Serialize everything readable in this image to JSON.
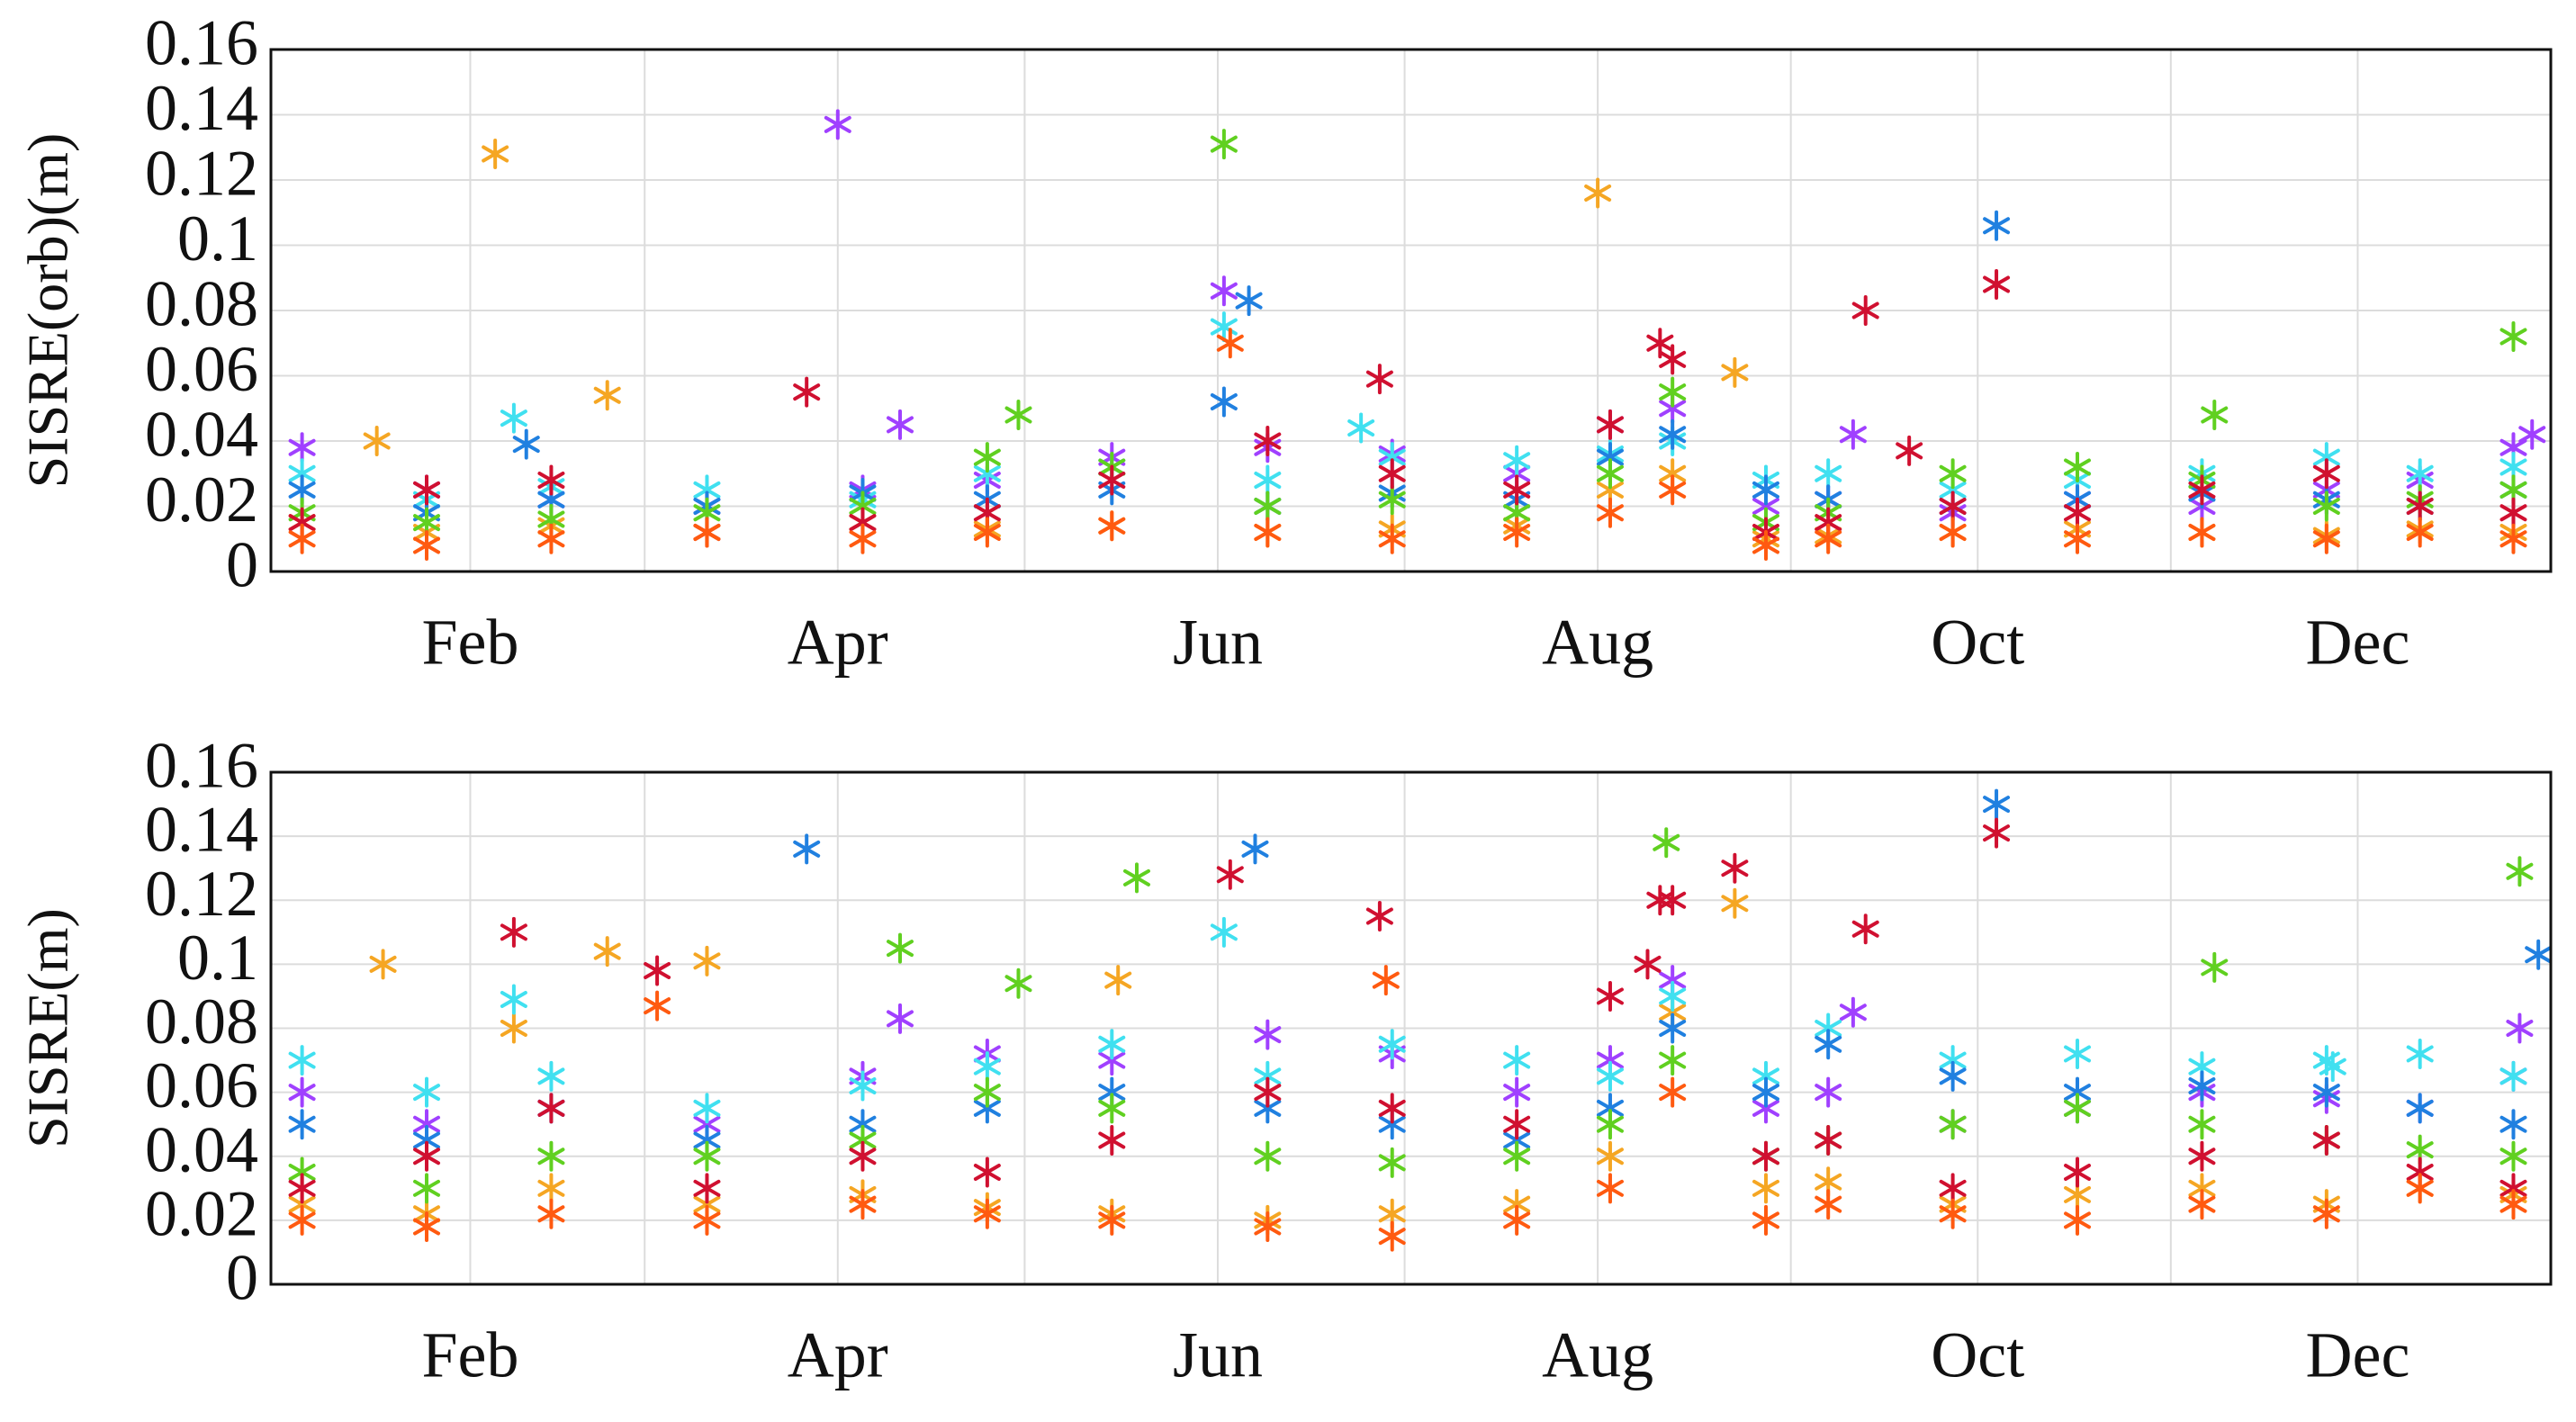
{
  "chart_data": [
    {
      "type": "scatter",
      "ylabel": "SISRE(orb)(m)",
      "xlim": [
        0,
        366
      ],
      "ylim": [
        0,
        0.16
      ],
      "yticks": [
        0,
        0.02,
        0.04,
        0.06,
        0.08,
        0.1,
        0.12,
        0.14,
        0.16
      ],
      "xticks": [
        {
          "value": 32,
          "label": "Feb"
        },
        {
          "value": 91,
          "label": "Apr"
        },
        {
          "value": 152,
          "label": "Jun"
        },
        {
          "value": 213,
          "label": "Aug"
        },
        {
          "value": 274,
          "label": "Oct"
        },
        {
          "value": 335,
          "label": "Dec"
        }
      ],
      "xticks_minor": [
        60,
        121,
        182,
        244,
        305
      ],
      "grid": true,
      "series": [
        {
          "color": "#f5a623",
          "x": [
            5,
            25,
            45,
            70,
            95,
            115,
            135,
            160,
            180,
            200,
            215,
            225,
            240,
            250,
            270,
            290,
            310,
            330,
            345,
            360,
            17,
            36,
            54,
            213,
            235
          ],
          "values": [
            0.015,
            0.012,
            0.014,
            0.012,
            0.015,
            0.013,
            0.014,
            0.012,
            0.013,
            0.014,
            0.025,
            0.03,
            0.01,
            0.011,
            0.012,
            0.013,
            0.012,
            0.011,
            0.013,
            0.012,
            0.04,
            0.128,
            0.054,
            0.116,
            0.061
          ]
        },
        {
          "color": "#a040ff",
          "x": [
            5,
            25,
            45,
            70,
            95,
            115,
            135,
            160,
            180,
            200,
            215,
            225,
            240,
            250,
            270,
            290,
            310,
            330,
            345,
            360,
            91,
            101,
            254,
            363,
            153
          ],
          "values": [
            0.038,
            0.025,
            0.022,
            0.02,
            0.025,
            0.028,
            0.035,
            0.038,
            0.036,
            0.03,
            0.045,
            0.05,
            0.02,
            0.022,
            0.018,
            0.022,
            0.02,
            0.025,
            0.028,
            0.038,
            0.137,
            0.045,
            0.042,
            0.042,
            0.086
          ]
        },
        {
          "color": "#40e0f0",
          "x": [
            5,
            25,
            45,
            70,
            95,
            115,
            135,
            160,
            180,
            200,
            215,
            225,
            240,
            250,
            270,
            290,
            310,
            330,
            345,
            360,
            39,
            175,
            153
          ],
          "values": [
            0.03,
            0.022,
            0.026,
            0.025,
            0.022,
            0.03,
            0.032,
            0.028,
            0.035,
            0.034,
            0.036,
            0.04,
            0.028,
            0.03,
            0.025,
            0.028,
            0.03,
            0.035,
            0.03,
            0.032,
            0.047,
            0.044,
            0.075
          ]
        },
        {
          "color": "#2080e0",
          "x": [
            5,
            25,
            45,
            70,
            95,
            115,
            135,
            160,
            180,
            200,
            215,
            225,
            240,
            250,
            270,
            290,
            310,
            330,
            345,
            360,
            41,
            157,
            277,
            153
          ],
          "values": [
            0.025,
            0.018,
            0.022,
            0.02,
            0.024,
            0.022,
            0.025,
            0.02,
            0.024,
            0.022,
            0.035,
            0.042,
            0.025,
            0.022,
            0.02,
            0.022,
            0.024,
            0.022,
            0.02,
            0.025,
            0.039,
            0.083,
            0.106,
            0.052
          ]
        },
        {
          "color": "#60d020",
          "x": [
            5,
            25,
            45,
            70,
            95,
            115,
            135,
            160,
            180,
            200,
            215,
            225,
            240,
            250,
            270,
            290,
            310,
            330,
            345,
            360,
            153,
            120,
            312,
            360
          ],
          "values": [
            0.018,
            0.015,
            0.016,
            0.018,
            0.02,
            0.035,
            0.032,
            0.02,
            0.022,
            0.018,
            0.03,
            0.055,
            0.015,
            0.018,
            0.03,
            0.032,
            0.028,
            0.02,
            0.022,
            0.025,
            0.131,
            0.048,
            0.048,
            0.072
          ]
        },
        {
          "color": "#d01030",
          "x": [
            5,
            25,
            45,
            70,
            95,
            115,
            135,
            160,
            180,
            200,
            215,
            225,
            240,
            250,
            270,
            290,
            310,
            330,
            345,
            360,
            86,
            178,
            256,
            277,
            263,
            223
          ],
          "values": [
            0.015,
            0.025,
            0.028,
            0.012,
            0.015,
            0.018,
            0.028,
            0.04,
            0.03,
            0.025,
            0.045,
            0.065,
            0.012,
            0.015,
            0.02,
            0.018,
            0.025,
            0.03,
            0.02,
            0.018,
            0.055,
            0.059,
            0.08,
            0.088,
            0.037,
            0.07
          ]
        },
        {
          "color": "#ff5a10",
          "x": [
            5,
            25,
            45,
            70,
            95,
            115,
            135,
            160,
            180,
            200,
            215,
            225,
            240,
            250,
            270,
            290,
            310,
            330,
            345,
            360,
            154
          ],
          "values": [
            0.01,
            0.008,
            0.01,
            0.012,
            0.01,
            0.012,
            0.014,
            0.012,
            0.01,
            0.012,
            0.018,
            0.025,
            0.008,
            0.01,
            0.012,
            0.01,
            0.012,
            0.01,
            0.012,
            0.01,
            0.07
          ]
        }
      ]
    },
    {
      "type": "scatter",
      "ylabel": "SISRE(m)",
      "xlim": [
        0,
        366
      ],
      "ylim": [
        0,
        0.16
      ],
      "yticks": [
        0,
        0.02,
        0.04,
        0.06,
        0.08,
        0.1,
        0.12,
        0.14,
        0.16
      ],
      "xticks": [
        {
          "value": 32,
          "label": "Feb"
        },
        {
          "value": 91,
          "label": "Apr"
        },
        {
          "value": 152,
          "label": "Jun"
        },
        {
          "value": 213,
          "label": "Aug"
        },
        {
          "value": 274,
          "label": "Oct"
        },
        {
          "value": 335,
          "label": "Dec"
        }
      ],
      "xticks_minor": [
        60,
        121,
        182,
        244,
        305
      ],
      "grid": true,
      "series": [
        {
          "color": "#f5a623",
          "x": [
            5,
            25,
            45,
            70,
            95,
            115,
            135,
            160,
            180,
            200,
            215,
            225,
            240,
            250,
            270,
            290,
            310,
            330,
            345,
            360,
            18,
            39,
            54,
            70,
            136,
            235
          ],
          "values": [
            0.025,
            0.022,
            0.03,
            0.025,
            0.028,
            0.024,
            0.022,
            0.02,
            0.022,
            0.025,
            0.04,
            0.085,
            0.03,
            0.032,
            0.025,
            0.028,
            0.03,
            0.025,
            0.03,
            0.028,
            0.1,
            0.08,
            0.104,
            0.101,
            0.095,
            0.119
          ]
        },
        {
          "color": "#a040ff",
          "x": [
            5,
            25,
            45,
            70,
            95,
            115,
            135,
            160,
            180,
            200,
            215,
            225,
            240,
            250,
            270,
            290,
            310,
            330,
            345,
            360,
            101,
            254,
            361
          ],
          "values": [
            0.06,
            0.05,
            0.055,
            0.05,
            0.065,
            0.072,
            0.07,
            0.078,
            0.072,
            0.06,
            0.07,
            0.095,
            0.055,
            0.06,
            0.05,
            0.055,
            0.06,
            0.058,
            0.055,
            0.065,
            0.083,
            0.085,
            0.08
          ]
        },
        {
          "color": "#40e0f0",
          "x": [
            5,
            25,
            45,
            70,
            95,
            115,
            135,
            160,
            180,
            200,
            215,
            225,
            240,
            250,
            270,
            290,
            310,
            330,
            345,
            360,
            39,
            153,
            331
          ],
          "values": [
            0.07,
            0.06,
            0.065,
            0.055,
            0.062,
            0.068,
            0.075,
            0.065,
            0.075,
            0.07,
            0.065,
            0.09,
            0.065,
            0.08,
            0.07,
            0.072,
            0.068,
            0.07,
            0.072,
            0.065,
            0.089,
            0.11,
            0.068
          ]
        },
        {
          "color": "#2080e0",
          "x": [
            5,
            25,
            45,
            70,
            95,
            115,
            135,
            160,
            180,
            200,
            215,
            225,
            240,
            250,
            270,
            290,
            310,
            330,
            345,
            360,
            86,
            158,
            277,
            364
          ],
          "values": [
            0.05,
            0.045,
            0.055,
            0.045,
            0.05,
            0.055,
            0.06,
            0.055,
            0.05,
            0.045,
            0.055,
            0.08,
            0.06,
            0.075,
            0.065,
            0.06,
            0.062,
            0.06,
            0.055,
            0.05,
            0.136,
            0.136,
            0.15,
            0.103
          ]
        },
        {
          "color": "#60d020",
          "x": [
            5,
            25,
            45,
            70,
            95,
            115,
            135,
            160,
            180,
            200,
            215,
            225,
            240,
            250,
            270,
            290,
            310,
            330,
            345,
            360,
            139,
            101,
            120,
            312,
            361,
            224
          ],
          "values": [
            0.035,
            0.03,
            0.04,
            0.04,
            0.045,
            0.06,
            0.055,
            0.04,
            0.038,
            0.04,
            0.05,
            0.07,
            0.04,
            0.045,
            0.05,
            0.055,
            0.05,
            0.045,
            0.042,
            0.04,
            0.127,
            0.105,
            0.094,
            0.099,
            0.129,
            0.138
          ]
        },
        {
          "color": "#d01030",
          "x": [
            5,
            25,
            45,
            70,
            95,
            115,
            135,
            160,
            180,
            200,
            215,
            225,
            240,
            250,
            270,
            290,
            310,
            330,
            345,
            360,
            39,
            62,
            154,
            178,
            277,
            235,
            256,
            223,
            221
          ],
          "values": [
            0.03,
            0.04,
            0.055,
            0.03,
            0.04,
            0.035,
            0.045,
            0.06,
            0.055,
            0.05,
            0.09,
            0.12,
            0.04,
            0.045,
            0.03,
            0.035,
            0.04,
            0.045,
            0.035,
            0.03,
            0.11,
            0.098,
            0.128,
            0.115,
            0.141,
            0.13,
            0.111,
            0.12,
            0.1
          ]
        },
        {
          "color": "#ff5a10",
          "x": [
            5,
            25,
            45,
            70,
            95,
            115,
            135,
            160,
            180,
            200,
            215,
            225,
            240,
            250,
            270,
            290,
            310,
            330,
            345,
            360,
            179,
            62
          ],
          "values": [
            0.02,
            0.018,
            0.022,
            0.02,
            0.025,
            0.022,
            0.02,
            0.018,
            0.015,
            0.02,
            0.03,
            0.06,
            0.02,
            0.025,
            0.022,
            0.02,
            0.025,
            0.022,
            0.03,
            0.025,
            0.095,
            0.087
          ]
        }
      ]
    }
  ]
}
